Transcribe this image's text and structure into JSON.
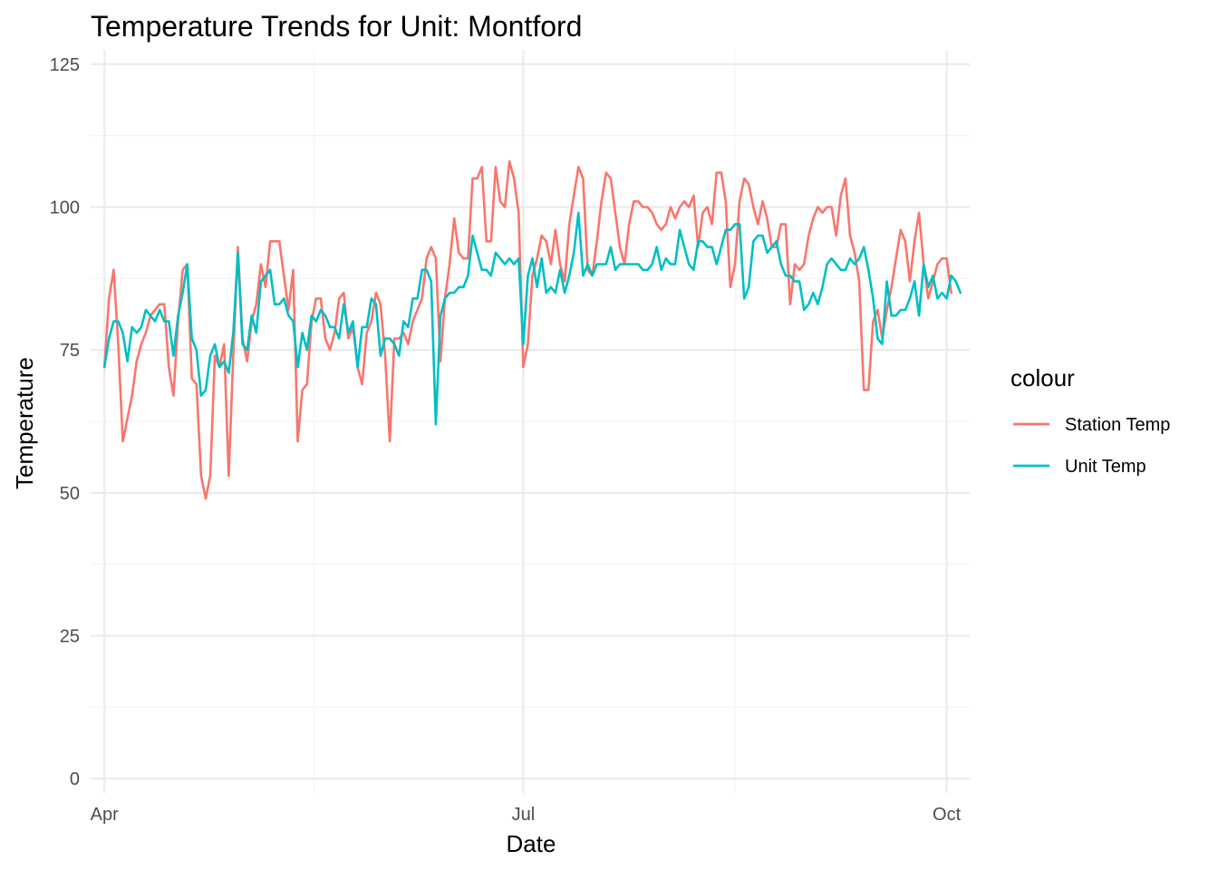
{
  "chart_data": {
    "type": "line",
    "title": "Temperature Trends for Unit: Montford",
    "xlabel": "Date",
    "ylabel": "Temperature",
    "ylim": [
      0,
      125
    ],
    "y_ticks": [
      0,
      25,
      50,
      75,
      100,
      125
    ],
    "x_ticks": [
      {
        "date": "2023-04-01",
        "label": "Apr"
      },
      {
        "date": "2023-07-01",
        "label": "Jul"
      },
      {
        "date": "2023-10-01",
        "label": "Oct"
      }
    ],
    "xlim": [
      "2023-03-29",
      "2023-10-06"
    ],
    "grid": true,
    "legend": {
      "title": "colour",
      "position": "right"
    },
    "x_start": "2023-04-01",
    "series": [
      {
        "name": "Station Temp",
        "color": "#F8766D",
        "values": [
          72,
          84,
          89,
          76,
          59,
          63,
          67,
          73,
          76,
          78,
          81,
          82,
          83,
          83,
          72,
          67,
          80,
          89,
          90,
          70,
          69,
          53,
          49,
          53,
          74,
          72,
          76,
          53,
          74,
          93,
          77,
          73,
          80,
          83,
          90,
          86,
          94,
          94,
          94,
          88,
          82,
          89,
          59,
          68,
          69,
          80,
          84,
          84,
          77,
          75,
          78,
          84,
          85,
          77,
          79,
          72,
          69,
          78,
          80,
          85,
          83,
          74,
          59,
          77,
          77,
          78,
          76,
          80,
          82,
          84,
          91,
          93,
          91,
          73,
          84,
          90,
          98,
          92,
          91,
          91,
          105,
          105,
          107,
          94,
          94,
          107,
          101,
          100,
          108,
          105,
          99,
          72,
          76,
          88,
          91,
          95,
          94,
          90,
          96,
          90,
          87,
          97,
          102,
          107,
          105,
          89,
          88,
          94,
          101,
          106,
          105,
          99,
          93,
          90,
          97,
          101,
          101,
          100,
          100,
          99,
          97,
          96,
          97,
          100,
          98,
          100,
          101,
          100,
          102,
          93,
          99,
          100,
          97,
          106,
          106,
          101,
          86,
          90,
          101,
          105,
          104,
          100,
          97,
          101,
          98,
          93,
          93,
          97,
          97,
          83,
          90,
          89,
          90,
          95,
          98,
          100,
          99,
          100,
          100,
          95,
          102,
          105,
          95,
          92,
          87,
          68,
          68,
          80,
          82,
          77,
          82,
          86,
          91,
          96,
          94,
          87,
          94,
          99,
          90,
          84,
          87,
          90,
          91,
          91,
          85
        ]
      },
      {
        "name": "Unit Temp",
        "color": "#00BFC4",
        "values": [
          72,
          77,
          80,
          80,
          78,
          73,
          79,
          78,
          79,
          82,
          81,
          80,
          82,
          80,
          80,
          74,
          81,
          85,
          90,
          77,
          75,
          67,
          68,
          74,
          76,
          72,
          73,
          71,
          78,
          92,
          76,
          75,
          81,
          78,
          87,
          88,
          89,
          83,
          83,
          84,
          81,
          80,
          72,
          78,
          75,
          81,
          80,
          82,
          81,
          79,
          79,
          77,
          83,
          78,
          80,
          72,
          79,
          79,
          84,
          83,
          74,
          77,
          77,
          76,
          74,
          80,
          79,
          84,
          84,
          89,
          89,
          87,
          62,
          81,
          84,
          85,
          85,
          86,
          86,
          88,
          95,
          92,
          89,
          89,
          88,
          92,
          91,
          90,
          91,
          90,
          91,
          76,
          88,
          91,
          86,
          91,
          85,
          86,
          85,
          89,
          85,
          88,
          92,
          99,
          88,
          90,
          88,
          90,
          90,
          90,
          93,
          89,
          90,
          90,
          90,
          90,
          90,
          89,
          89,
          90,
          93,
          89,
          91,
          90,
          90,
          96,
          93,
          90,
          89,
          94,
          94,
          93,
          93,
          90,
          93,
          96,
          96,
          97,
          97,
          84,
          86,
          94,
          95,
          95,
          92,
          93,
          94,
          90,
          88,
          88,
          87,
          87,
          82,
          83,
          85,
          83,
          86,
          90,
          91,
          90,
          89,
          89,
          91,
          90,
          91,
          93,
          89,
          84,
          77,
          76,
          87,
          81,
          81,
          82,
          82,
          84,
          87,
          81,
          90,
          86,
          88,
          84,
          85,
          84,
          88,
          87,
          85
        ]
      }
    ]
  }
}
